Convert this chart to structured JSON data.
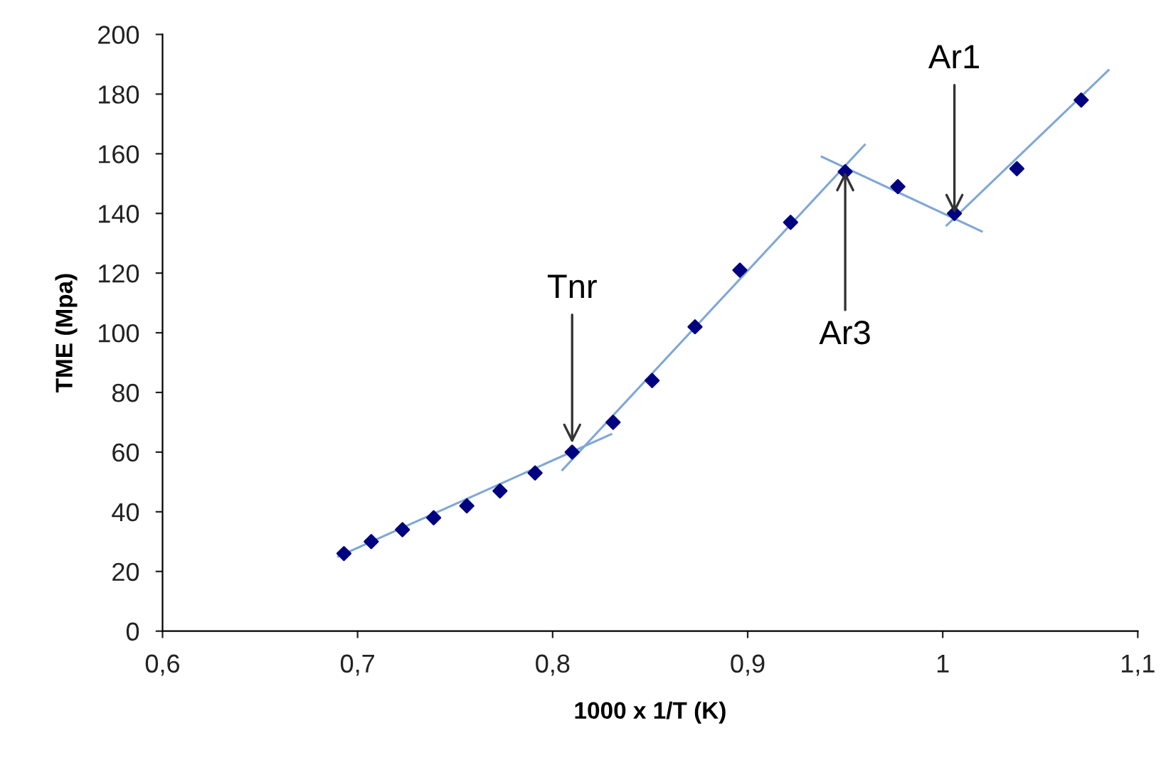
{
  "chart_data": {
    "type": "scatter",
    "xlabel": "1000 x 1/T (K)",
    "ylabel": "TME (Mpa)",
    "xlim": [
      0.6,
      1.1
    ],
    "xticks": [
      {
        "value": 0.6,
        "label": "0,6"
      },
      {
        "value": 0.7,
        "label": "0,7"
      },
      {
        "value": 0.8,
        "label": "0,8"
      },
      {
        "value": 0.9,
        "label": "0,9"
      },
      1,
      {
        "value": 1.1,
        "label": "1,1"
      }
    ],
    "ylim": [
      0,
      200
    ],
    "yticks": [
      0,
      20,
      40,
      60,
      80,
      100,
      120,
      140,
      160,
      180,
      200
    ],
    "grid": false,
    "legend": false,
    "series": [
      {
        "marker": "diamond",
        "color": "#000080",
        "x": [
          0.693,
          0.707,
          0.723,
          0.739,
          0.756,
          0.773,
          0.791,
          0.81,
          0.831,
          0.851,
          0.873,
          0.896,
          0.922,
          0.95,
          0.977,
          1.006,
          1.038,
          1.071
        ],
        "values": [
          26,
          30,
          34,
          38,
          42,
          47,
          53,
          60,
          70,
          84,
          102,
          121,
          137,
          154,
          149,
          140,
          155,
          178
        ]
      },
      {
        "type": "line",
        "color": "#7fa7d6",
        "x": [
          0.69,
          0.83
        ],
        "values": [
          25,
          66
        ]
      },
      {
        "type": "line",
        "color": "#7fa7d6",
        "x": [
          0.805,
          0.96
        ],
        "values": [
          54,
          163
        ]
      },
      {
        "type": "line",
        "color": "#7fa7d6",
        "x": [
          0.938,
          1.02
        ],
        "values": [
          159,
          134
        ]
      },
      {
        "type": "line",
        "color": "#7fa7d6",
        "x": [
          1.002,
          1.085
        ],
        "values": [
          136,
          188
        ]
      }
    ],
    "annotations": [
      {
        "text": "Tnr",
        "x": 0.81,
        "y": 63
      },
      {
        "text": "Ar3",
        "x": 0.95,
        "y": 154
      },
      {
        "text": "Ar1",
        "x": 1.006,
        "y": 140
      }
    ]
  }
}
